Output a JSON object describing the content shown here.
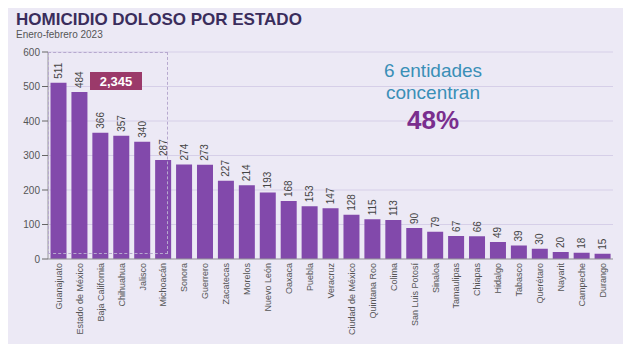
{
  "chart_data": {
    "type": "bar",
    "title": "HOMICIDIO DOLOSO POR ESTADO",
    "subtitle": "Enero-febrero 2023",
    "categories": [
      "Guanajuato",
      "Estado de México",
      "Baja California",
      "Chihuahua",
      "Jalisco",
      "Michoacán",
      "Sonora",
      "Guerrero",
      "Zacatecas",
      "Morelos",
      "Nuevo León",
      "Oaxaca",
      "Puebla",
      "Veracruz",
      "Ciudad de México",
      "Quintana Roo",
      "Colima",
      "San Luis Potosí",
      "Sinaloa",
      "Tamaulipas",
      "Chiapas",
      "Hidalgo",
      "Tabasco",
      "Querétaro",
      "Nayarit",
      "Campeche",
      "Durango"
    ],
    "values": [
      511,
      484,
      366,
      357,
      340,
      287,
      274,
      273,
      227,
      214,
      193,
      168,
      153,
      147,
      128,
      115,
      113,
      90,
      79,
      67,
      66,
      49,
      39,
      30,
      20,
      18,
      15
    ],
    "color": "#8249ab",
    "ylim": [
      0,
      600
    ],
    "yticks": [
      0,
      100,
      200,
      300,
      400,
      500,
      600
    ],
    "grid": true,
    "data_labels": true,
    "annotations": [
      "2,345",
      "6 entidades",
      "concentran",
      "48%"
    ]
  }
}
